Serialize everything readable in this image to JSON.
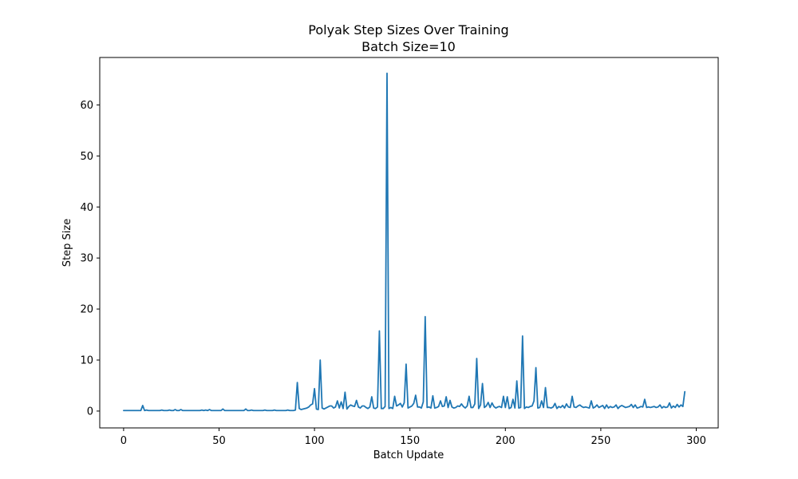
{
  "chart_data": {
    "type": "line",
    "title": "Polyak Step Sizes Over Training",
    "subtitle": "Batch Size=10",
    "xlabel": "Batch Update",
    "ylabel": "Step Size",
    "xlim": [
      -12.5,
      311.5
    ],
    "ylim": [
      -3.3,
      69.3
    ],
    "xticks": [
      0,
      50,
      100,
      150,
      200,
      250,
      300
    ],
    "yticks": [
      0,
      10,
      20,
      30,
      40,
      50,
      60
    ],
    "grid": false,
    "legend": "none",
    "series": [
      {
        "color": "#1f77b4",
        "x_start": 0,
        "x_step": 1,
        "values": [
          0.1,
          0.1,
          0.1,
          0.1,
          0.1,
          0.1,
          0.1,
          0.1,
          0.1,
          0.1,
          1.1,
          0.1,
          0.2,
          0.1,
          0.1,
          0.1,
          0.1,
          0.1,
          0.1,
          0.1,
          0.2,
          0.1,
          0.1,
          0.1,
          0.2,
          0.1,
          0.1,
          0.3,
          0.1,
          0.1,
          0.3,
          0.1,
          0.1,
          0.1,
          0.1,
          0.1,
          0.1,
          0.1,
          0.1,
          0.1,
          0.1,
          0.2,
          0.1,
          0.2,
          0.1,
          0.3,
          0.1,
          0.1,
          0.1,
          0.1,
          0.1,
          0.1,
          0.4,
          0.1,
          0.1,
          0.1,
          0.1,
          0.1,
          0.1,
          0.1,
          0.1,
          0.1,
          0.1,
          0.1,
          0.4,
          0.1,
          0.1,
          0.2,
          0.1,
          0.1,
          0.1,
          0.1,
          0.1,
          0.1,
          0.2,
          0.1,
          0.1,
          0.1,
          0.1,
          0.2,
          0.1,
          0.1,
          0.1,
          0.1,
          0.1,
          0.1,
          0.2,
          0.1,
          0.1,
          0.1,
          0.2,
          5.6,
          0.5,
          0.3,
          0.4,
          0.5,
          0.6,
          0.8,
          1.2,
          1.4,
          4.4,
          0.4,
          0.3,
          10.0,
          0.6,
          0.4,
          0.6,
          0.8,
          1.0,
          1.0,
          0.6,
          0.8,
          2.0,
          0.6,
          1.8,
          0.5,
          3.7,
          0.4,
          0.9,
          1.2,
          1.0,
          0.9,
          2.1,
          0.8,
          0.6,
          1.0,
          1.0,
          0.7,
          0.5,
          0.8,
          2.8,
          0.6,
          0.5,
          0.8,
          15.7,
          0.5,
          0.5,
          0.9,
          66.2,
          0.5,
          0.7,
          0.5,
          2.9,
          1.0,
          1.2,
          1.5,
          0.8,
          1.6,
          9.2,
          0.6,
          0.8,
          1.0,
          1.5,
          3.1,
          0.8,
          0.8,
          0.6,
          1.8,
          18.5,
          0.7,
          0.8,
          0.6,
          3.0,
          0.6,
          0.7,
          0.9,
          2.0,
          0.9,
          1.0,
          2.8,
          0.7,
          2.1,
          0.8,
          0.6,
          0.7,
          1.0,
          0.9,
          1.4,
          0.9,
          0.6,
          1.0,
          2.9,
          0.7,
          0.7,
          1.4,
          10.3,
          0.5,
          1.2,
          5.4,
          0.7,
          1.0,
          1.7,
          0.7,
          1.6,
          0.9,
          0.6,
          0.8,
          0.9,
          0.7,
          2.9,
          0.7,
          2.8,
          0.5,
          0.7,
          2.3,
          0.6,
          5.9,
          0.6,
          0.7,
          14.7,
          0.5,
          0.8,
          0.7,
          0.9,
          1.0,
          2.0,
          8.5,
          0.6,
          0.7,
          2.0,
          0.7,
          4.6,
          0.7,
          0.7,
          0.6,
          0.8,
          1.5,
          0.5,
          0.9,
          0.7,
          1.1,
          0.6,
          1.4,
          0.8,
          0.7,
          2.9,
          0.8,
          0.7,
          1.0,
          1.2,
          0.9,
          0.7,
          0.8,
          0.7,
          0.6,
          2.0,
          0.6,
          0.8,
          1.2,
          0.7,
          0.9,
          1.1,
          0.5,
          1.2,
          0.6,
          0.9,
          0.7,
          0.8,
          1.2,
          0.5,
          0.9,
          1.1,
          0.9,
          0.7,
          0.8,
          0.9,
          1.3,
          0.7,
          1.2,
          0.6,
          0.7,
          0.9,
          0.8,
          2.3,
          0.7,
          0.8,
          0.7,
          0.8,
          0.9,
          0.7,
          0.8,
          1.2,
          0.6,
          0.9,
          0.7,
          0.8,
          1.6,
          0.6,
          1.0,
          0.7,
          1.3,
          0.8,
          1.2,
          0.9,
          3.8
        ]
      }
    ]
  }
}
